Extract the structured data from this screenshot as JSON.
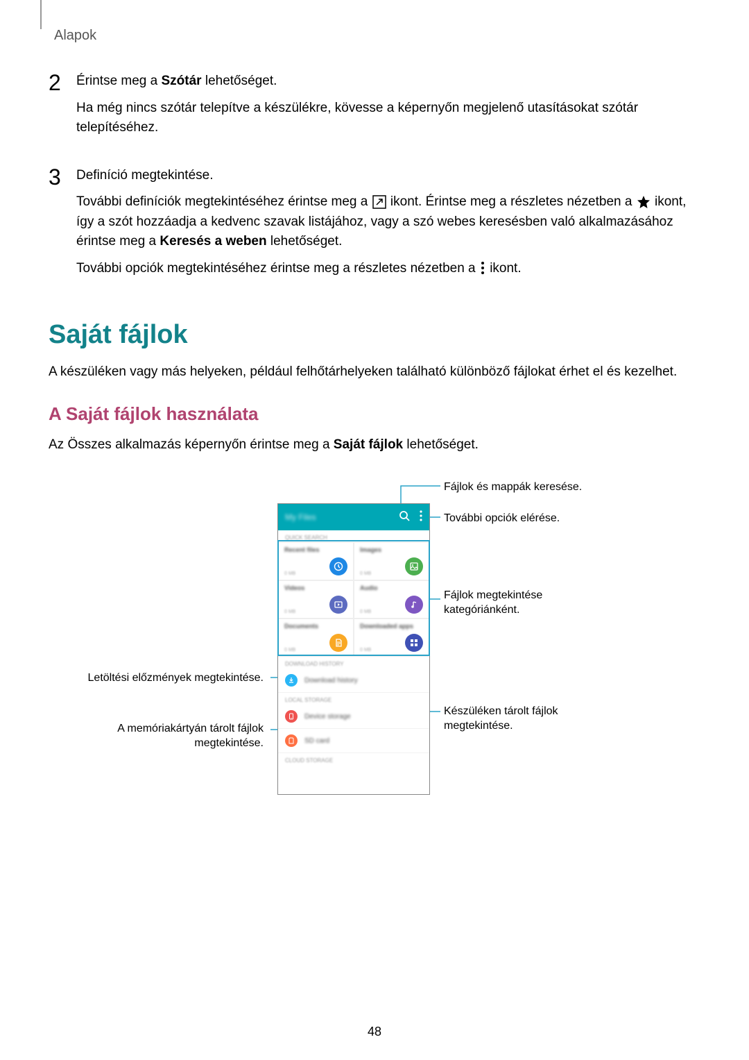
{
  "header": {
    "label": "Alapok"
  },
  "colors": {
    "accent_blue": "#00a7b5",
    "heading_teal": "#13828a",
    "heading_pink": "#b0436f",
    "leader_blue": "#2aa3c9",
    "icon_recent": "#1e88e5",
    "icon_images": "#4caf50",
    "icon_videos": "#5c6bc0",
    "icon_audio": "#7e57c2",
    "icon_documents": "#f9a825",
    "icon_downloaded": "#3f51b5",
    "icon_download_hist": "#29b6f6",
    "icon_device": "#ef5350",
    "icon_sd": "#ff7043"
  },
  "step2": {
    "num": "2",
    "line1_pre": "Érintse meg a ",
    "line1_bold": "Szótár",
    "line1_post": " lehetőséget.",
    "line2": "Ha még nincs szótár telepítve a készülékre, kövesse a képernyőn megjelenő utasításokat szótár telepítéséhez."
  },
  "step3": {
    "num": "3",
    "line1": "Definíció megtekintése.",
    "para2_a": "További definíciók megtekintéséhez érintse meg a ",
    "para2_b": " ikont. Érintse meg a részletes nézetben a ",
    "para2_c": " ikont, így a szót hozzáadja a kedvenc szavak listájához, vagy a szó webes keresésben való alkalmazásához érintse meg a ",
    "para2_bold": "Keresés a weben",
    "para2_d": " lehetőséget.",
    "para3_a": "További opciók megtekintéséhez érintse meg a részletes nézetben a ",
    "para3_b": " ikont."
  },
  "section_myfiles": {
    "title": "Saját fájlok",
    "intro": "A készüléken vagy más helyeken, például felhőtárhelyeken található különböző fájlokat érhet el és kezelhet.",
    "sub_title": "A Saját fájlok használata",
    "sub_text_pre": "Az Összes alkalmazás képernyőn érintse meg a ",
    "sub_text_bold": "Saját fájlok",
    "sub_text_post": " lehetőséget."
  },
  "phone": {
    "title": "My Files",
    "sec_quick": "QUICK SEARCH",
    "sec_download": "DOWNLOAD HISTORY",
    "sec_local": "LOCAL STORAGE",
    "sec_cloud": "CLOUD STORAGE",
    "cells": {
      "recent": {
        "title": "Recent files",
        "sub": "0 MB"
      },
      "images": {
        "title": "Images",
        "sub": "0 MB"
      },
      "videos": {
        "title": "Videos",
        "sub": "0 MB"
      },
      "audio": {
        "title": "Audio",
        "sub": "0 MB"
      },
      "documents": {
        "title": "Documents",
        "sub": "0 MB"
      },
      "downloaded": {
        "title": "Downloaded apps",
        "sub": "0 MB"
      }
    },
    "rows": {
      "dlhist": "Download history",
      "device": "Device storage",
      "sd": "SD card"
    }
  },
  "callouts": {
    "search": "Fájlok és mappák keresése.",
    "more": "További opciók elérése.",
    "categories": "Fájlok megtekintése kategóriánként.",
    "device": "Készüléken tárolt fájlok megtekintése.",
    "dlhist": "Letöltési előzmények megtekintése.",
    "sd": "A memóriakártyán tárolt fájlok megtekintése."
  },
  "page_number": "48"
}
